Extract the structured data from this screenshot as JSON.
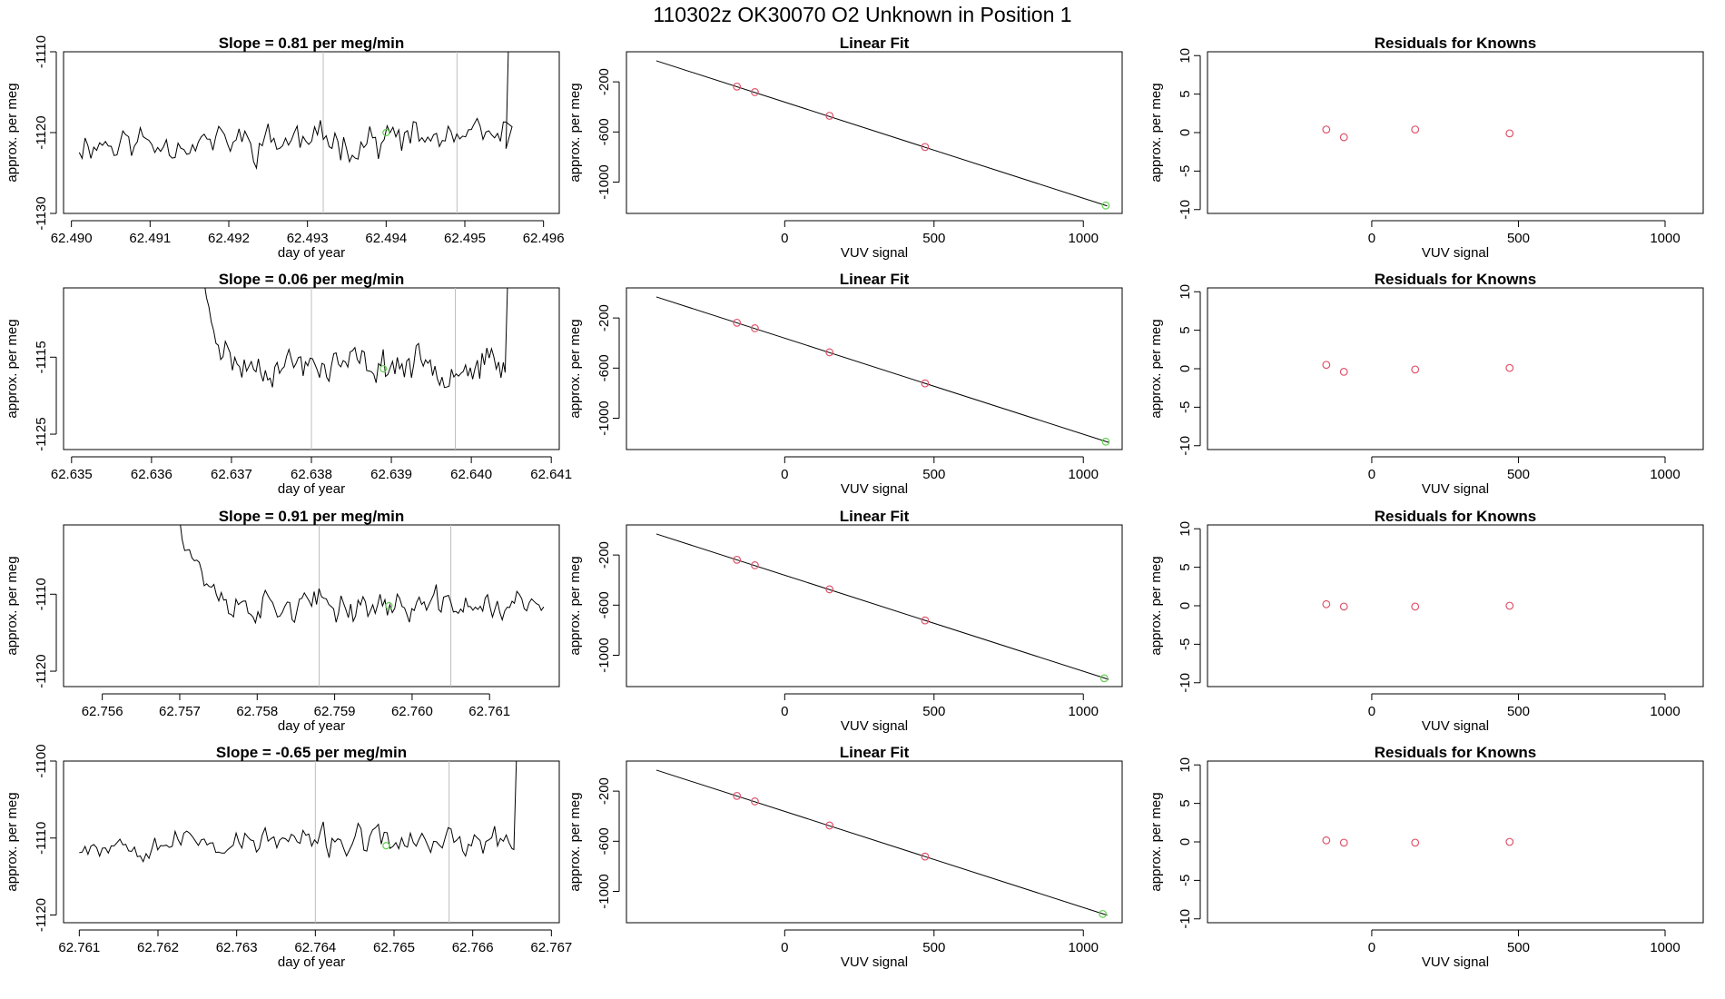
{
  "title": "110302z      OK30070    O2 Unknown in Position  1",
  "colors": {
    "line": "#000000",
    "grid_vline": "#bebebe",
    "known_point": "#df536b",
    "unknown_point": "#61d04f"
  },
  "chart_data": [
    {
      "type": "line",
      "panel": "time-series",
      "row": 1,
      "title": "Slope =  0.81  per meg/min",
      "xlabel": "day of year",
      "ylabel": "approx. per meg",
      "xlim": [
        62.4899,
        62.4962
      ],
      "ylim": [
        -1130,
        -1110
      ],
      "xticks": [
        62.49,
        62.491,
        62.492,
        62.493,
        62.494,
        62.495,
        62.496
      ],
      "xtick_labels": [
        "62.490",
        "62.491",
        "62.492",
        "62.493",
        "62.494",
        "62.495",
        "62.496"
      ],
      "yticks": [
        -1130,
        -1120,
        -1110
      ],
      "ytick_labels": [
        "-1130",
        "-1120",
        "-1110"
      ],
      "vlines": [
        62.4932,
        62.4949
      ],
      "series": {
        "start": 62.4901,
        "end": 62.4956,
        "n": 150,
        "base": -1121,
        "noise": 2.6,
        "seed": 11,
        "trend": 0.4,
        "lead": null,
        "tail": {
          "start": 62.4955,
          "to": -1108
        }
      },
      "marker": {
        "x": 62.494,
        "y": -1120
      },
      "vlines_label": ""
    },
    {
      "type": "scatter",
      "panel": "linear-fit",
      "row": 1,
      "title": "Linear Fit",
      "xlabel": "VUV signal",
      "ylabel": "approx. per meg",
      "xlim": [
        -530,
        1130
      ],
      "ylim": [
        -1250,
        40
      ],
      "xticks": [
        0,
        500,
        1000
      ],
      "xtick_labels": [
        "0",
        "500",
        "1000"
      ],
      "yticks": [
        -1000,
        -600,
        -200
      ],
      "ytick_labels": [
        "-1000",
        "-600",
        "-200"
      ],
      "fit": {
        "x1": -430,
        "y1": -32,
        "x2": 1080,
        "y2": -1190
      },
      "knowns": [
        {
          "x": -160,
          "y": -238
        },
        {
          "x": -100,
          "y": -282
        },
        {
          "x": 150,
          "y": -471
        },
        {
          "x": 470,
          "y": -720
        }
      ],
      "unknown": {
        "x": 1075,
        "y": -1187
      }
    },
    {
      "type": "scatter",
      "panel": "residuals",
      "row": 1,
      "title": "Residuals for Knowns",
      "xlabel": "VUV signal",
      "ylabel": "approx. per meg",
      "xlim": [
        -560,
        1130
      ],
      "ylim": [
        -10.5,
        10.5
      ],
      "xticks": [
        0,
        500,
        1000
      ],
      "xtick_labels": [
        "0",
        "500",
        "1000"
      ],
      "yticks": [
        -10,
        -5,
        0,
        5,
        10
      ],
      "ytick_labels": [
        "-10",
        "-5",
        "0",
        "5",
        "10"
      ],
      "knowns": [
        {
          "x": -155,
          "y": 0.4
        },
        {
          "x": -95,
          "y": -0.6
        },
        {
          "x": 148,
          "y": 0.4
        },
        {
          "x": 470,
          "y": -0.1
        }
      ]
    },
    {
      "type": "line",
      "panel": "time-series",
      "row": 2,
      "title": "Slope =  0.06  per meg/min",
      "xlabel": "day of year",
      "ylabel": "approx. per meg",
      "xlim": [
        62.6349,
        62.6411
      ],
      "ylim": [
        -1127,
        -1106
      ],
      "xticks": [
        62.635,
        62.636,
        62.637,
        62.638,
        62.639,
        62.64,
        62.641
      ],
      "xtick_labels": [
        "62.635",
        "62.636",
        "62.637",
        "62.638",
        "62.639",
        "62.640",
        "62.641"
      ],
      "yticks": [
        -1125,
        -1115
      ],
      "ytick_labels": [
        "-1125",
        "-1115"
      ],
      "vlines": [
        62.638,
        62.6398
      ],
      "series": {
        "start": 62.6366,
        "end": 62.6404,
        "n": 130,
        "base": -1116,
        "noise": 2.6,
        "seed": 23,
        "trend": 0,
        "lead": {
          "from": -1104,
          "len": 18
        },
        "tail": {
          "start": 62.6404,
          "to": -1104
        }
      },
      "marker": {
        "x": 62.6389,
        "y": -1116.5
      }
    },
    {
      "type": "scatter",
      "panel": "linear-fit",
      "row": 2,
      "title": "Linear Fit",
      "xlabel": "VUV signal",
      "ylabel": "approx. per meg",
      "xlim": [
        -530,
        1130
      ],
      "ylim": [
        -1250,
        40
      ],
      "xticks": [
        0,
        500,
        1000
      ],
      "xtick_labels": [
        "0",
        "500",
        "1000"
      ],
      "yticks": [
        -1000,
        -600,
        -200
      ],
      "ytick_labels": [
        "-1000",
        "-600",
        "-200"
      ],
      "fit": {
        "x1": -430,
        "y1": -32,
        "x2": 1085,
        "y2": -1193
      },
      "knowns": [
        {
          "x": -160,
          "y": -238
        },
        {
          "x": -100,
          "y": -282
        },
        {
          "x": 150,
          "y": -474
        },
        {
          "x": 470,
          "y": -722
        }
      ],
      "unknown": {
        "x": 1075,
        "y": -1187
      }
    },
    {
      "type": "scatter",
      "panel": "residuals",
      "row": 2,
      "title": "Residuals for Knowns",
      "xlabel": "VUV signal",
      "ylabel": "approx. per meg",
      "xlim": [
        -560,
        1130
      ],
      "ylim": [
        -10.5,
        10.5
      ],
      "xticks": [
        0,
        500,
        1000
      ],
      "xtick_labels": [
        "0",
        "500",
        "1000"
      ],
      "yticks": [
        -10,
        -5,
        0,
        5,
        10
      ],
      "ytick_labels": [
        "-10",
        "-5",
        "0",
        "5",
        "10"
      ],
      "knowns": [
        {
          "x": -155,
          "y": 0.5
        },
        {
          "x": -95,
          "y": -0.4
        },
        {
          "x": 148,
          "y": -0.1
        },
        {
          "x": 470,
          "y": 0.1
        }
      ]
    },
    {
      "type": "line",
      "panel": "time-series",
      "row": 3,
      "title": "Slope =  0.91  per meg/min",
      "xlabel": "day of year",
      "ylabel": "approx. per meg",
      "xlim": [
        62.7555,
        62.7619
      ],
      "ylim": [
        -1122,
        -1101
      ],
      "xticks": [
        62.756,
        62.757,
        62.758,
        62.759,
        62.76,
        62.761
      ],
      "xtick_labels": [
        "62.756",
        "62.757",
        "62.758",
        "62.759",
        "62.760",
        "62.761"
      ],
      "yticks": [
        -1120,
        -1110
      ],
      "ytick_labels": [
        "-1120",
        "-1110"
      ],
      "vlines": [
        62.7588,
        62.7605
      ],
      "series": {
        "start": 62.757,
        "end": 62.7617,
        "n": 150,
        "base": -1111.5,
        "noise": 2.3,
        "seed": 37,
        "trend": 0,
        "lead": {
          "from": -1100,
          "len": 24
        },
        "tail": null
      },
      "marker": {
        "x": 62.7597,
        "y": -1111.5
      }
    },
    {
      "type": "scatter",
      "panel": "linear-fit",
      "row": 3,
      "title": "Linear Fit",
      "xlabel": "VUV signal",
      "ylabel": "approx. per meg",
      "xlim": [
        -530,
        1130
      ],
      "ylim": [
        -1250,
        40
      ],
      "xticks": [
        0,
        500,
        1000
      ],
      "xtick_labels": [
        "0",
        "500",
        "1000"
      ],
      "yticks": [
        -1000,
        -600,
        -200
      ],
      "ytick_labels": [
        "-1000",
        "-600",
        "-200"
      ],
      "fit": {
        "x1": -430,
        "y1": -32,
        "x2": 1085,
        "y2": -1193
      },
      "knowns": [
        {
          "x": -160,
          "y": -238
        },
        {
          "x": -100,
          "y": -282
        },
        {
          "x": 150,
          "y": -474
        },
        {
          "x": 470,
          "y": -722
        }
      ],
      "unknown": {
        "x": 1070,
        "y": -1184
      }
    },
    {
      "type": "scatter",
      "panel": "residuals",
      "row": 3,
      "title": "Residuals for Knowns",
      "xlabel": "VUV signal",
      "ylabel": "approx. per meg",
      "xlim": [
        -560,
        1130
      ],
      "ylim": [
        -10.5,
        10.5
      ],
      "xticks": [
        0,
        500,
        1000
      ],
      "xtick_labels": [
        "0",
        "500",
        "1000"
      ],
      "yticks": [
        -10,
        -5,
        0,
        5,
        10
      ],
      "ytick_labels": [
        "-10",
        "-5",
        "0",
        "5",
        "10"
      ],
      "knowns": [
        {
          "x": -155,
          "y": 0.2
        },
        {
          "x": -95,
          "y": -0.1
        },
        {
          "x": 148,
          "y": -0.1
        },
        {
          "x": 470,
          "y": 0.0
        }
      ]
    },
    {
      "type": "line",
      "panel": "time-series",
      "row": 4,
      "title": "Slope =  -0.65  per meg/min",
      "xlabel": "day of year",
      "ylabel": "approx. per meg",
      "xlim": [
        62.7608,
        62.7671
      ],
      "ylim": [
        -1121,
        -1100
      ],
      "xticks": [
        62.761,
        62.762,
        62.763,
        62.764,
        62.765,
        62.766,
        62.767
      ],
      "xtick_labels": [
        "62.761",
        "62.762",
        "62.763",
        "62.764",
        "62.765",
        "62.766",
        "62.767"
      ],
      "yticks": [
        -1120,
        -1110,
        -1100
      ],
      "ytick_labels": [
        "-1120",
        "-1110",
        "-1100"
      ],
      "vlines": [
        62.764,
        62.7657
      ],
      "series": {
        "start": 62.761,
        "end": 62.7665,
        "n": 150,
        "base": -1110.5,
        "noise": 2.2,
        "seed": 53,
        "trend": 0,
        "lead": null,
        "tail": {
          "start": 62.7665,
          "to": -1099
        }
      },
      "marker": {
        "x": 62.7649,
        "y": -1111
      }
    },
    {
      "type": "scatter",
      "panel": "linear-fit",
      "row": 4,
      "title": "Linear Fit",
      "xlabel": "VUV signal",
      "ylabel": "approx. per meg",
      "xlim": [
        -530,
        1130
      ],
      "ylim": [
        -1250,
        40
      ],
      "xticks": [
        0,
        500,
        1000
      ],
      "xtick_labels": [
        "0",
        "500",
        "1000"
      ],
      "yticks": [
        -1000,
        -600,
        -200
      ],
      "ytick_labels": [
        "-1000",
        "-600",
        "-200"
      ],
      "fit": {
        "x1": -430,
        "y1": -32,
        "x2": 1080,
        "y2": -1190
      },
      "knowns": [
        {
          "x": -160,
          "y": -238
        },
        {
          "x": -100,
          "y": -282
        },
        {
          "x": 150,
          "y": -474
        },
        {
          "x": 470,
          "y": -722
        }
      ],
      "unknown": {
        "x": 1065,
        "y": -1180
      }
    },
    {
      "type": "scatter",
      "panel": "residuals",
      "row": 4,
      "title": "Residuals for Knowns",
      "xlabel": "VUV signal",
      "ylabel": "approx. per meg",
      "xlim": [
        -560,
        1130
      ],
      "ylim": [
        -10.5,
        10.5
      ],
      "xticks": [
        0,
        500,
        1000
      ],
      "xtick_labels": [
        "0",
        "500",
        "1000"
      ],
      "yticks": [
        -10,
        -5,
        0,
        5,
        10
      ],
      "ytick_labels": [
        "-10",
        "-5",
        "0",
        "5",
        "10"
      ],
      "knowns": [
        {
          "x": -155,
          "y": 0.2
        },
        {
          "x": -95,
          "y": -0.1
        },
        {
          "x": 148,
          "y": -0.1
        },
        {
          "x": 470,
          "y": 0.0
        }
      ]
    }
  ]
}
